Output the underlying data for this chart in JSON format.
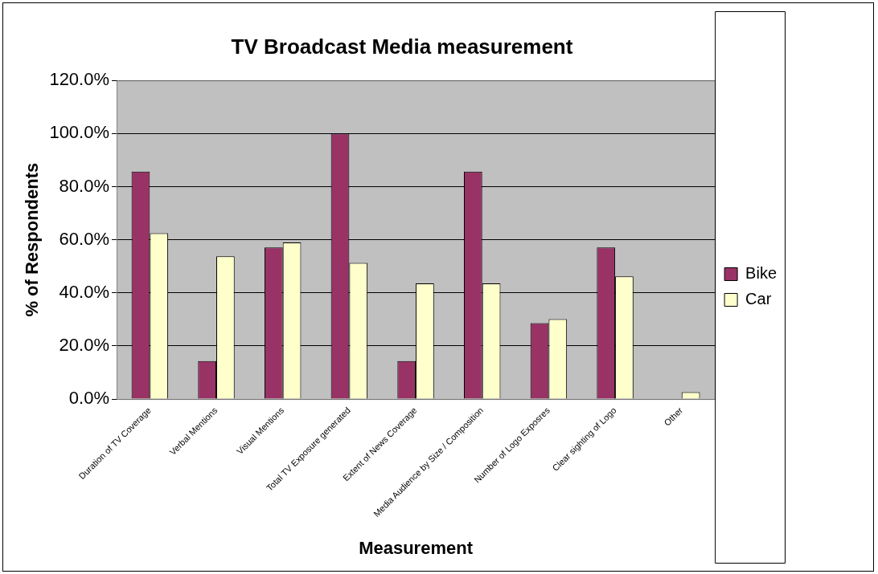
{
  "chart_data": {
    "type": "bar",
    "title": "TV Broadcast Media measurement",
    "xlabel": "Measurement",
    "ylabel": "% of Respondents",
    "categories": [
      "Duration of TV Coverage",
      "Verbal Mentions",
      "Visual Mentions",
      "Total TV Exposure generated",
      "Extent of News Coverage",
      "Media Audience by Size / Composition",
      "Number of Logo Exposres",
      "Clear sighting of Logo",
      "Other"
    ],
    "series": [
      {
        "name": "Bike",
        "color": "#993366",
        "values": [
          85.7,
          14.3,
          57.1,
          100,
          14.3,
          85.7,
          28.6,
          57.1,
          0
        ]
      },
      {
        "name": "Car",
        "color": "#ffffcc",
        "values": [
          62.5,
          53.8,
          59.0,
          51.3,
          43.6,
          43.6,
          30.1,
          46.2,
          2.6
        ]
      }
    ],
    "ylim": [
      0,
      120
    ],
    "yticks": [
      {
        "value": 0,
        "label": "0.0%"
      },
      {
        "value": 20,
        "label": "20.0%"
      },
      {
        "value": 40,
        "label": "40.0%"
      },
      {
        "value": 60,
        "label": "60.0%"
      },
      {
        "value": 80,
        "label": "80.0%"
      },
      {
        "value": 100,
        "label": "100.0%"
      },
      {
        "value": 120,
        "label": "120.0%"
      }
    ],
    "grid": "y",
    "legend": "right"
  }
}
